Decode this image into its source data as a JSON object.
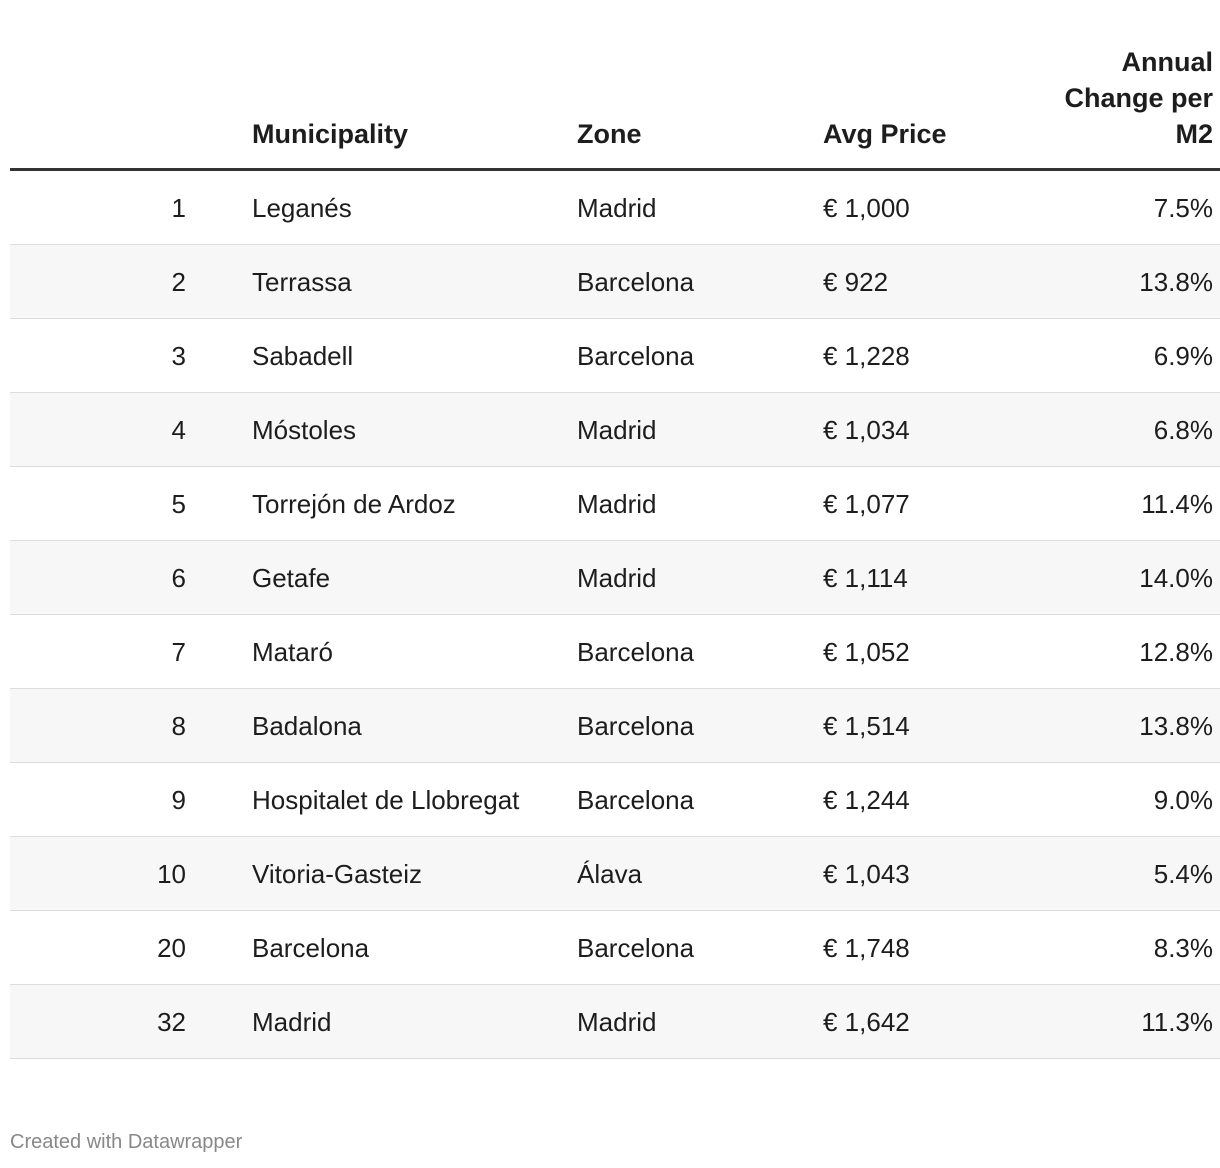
{
  "table": {
    "headers": [
      "Municipality",
      "Zone",
      "Avg Price",
      "Annual Change per M2"
    ],
    "rows": [
      [
        "1",
        "Leganés",
        "Madrid",
        "€ 1,000",
        "7.5%"
      ],
      [
        "2",
        "Terrassa",
        "Barcelona",
        "€ 922",
        "13.8%"
      ],
      [
        "3",
        "Sabadell",
        "Barcelona",
        "€ 1,228",
        "6.9%"
      ],
      [
        "4",
        "Móstoles",
        "Madrid",
        "€ 1,034",
        "6.8%"
      ],
      [
        "5",
        "Torrejón de Ardoz",
        "Madrid",
        "€ 1,077",
        "11.4%"
      ],
      [
        "6",
        "Getafe",
        "Madrid",
        "€ 1,114",
        "14.0%"
      ],
      [
        "7",
        "Mataró",
        "Barcelona",
        "€ 1,052",
        "12.8%"
      ],
      [
        "8",
        "Badalona",
        "Barcelona",
        "€ 1,514",
        "13.8%"
      ],
      [
        "9",
        "Hospitalet de Llobregat",
        "Barcelona",
        "€ 1,244",
        "9.0%"
      ],
      [
        "10",
        "Vitoria-Gasteiz",
        "Álava",
        "€ 1,043",
        "5.4%"
      ],
      [
        "20",
        "Barcelona",
        "Barcelona",
        "€ 1,748",
        "8.3%"
      ],
      [
        "32",
        "Madrid",
        "Madrid",
        "€ 1,642",
        "11.3%"
      ]
    ]
  },
  "footer": "Created with Datawrapper"
}
